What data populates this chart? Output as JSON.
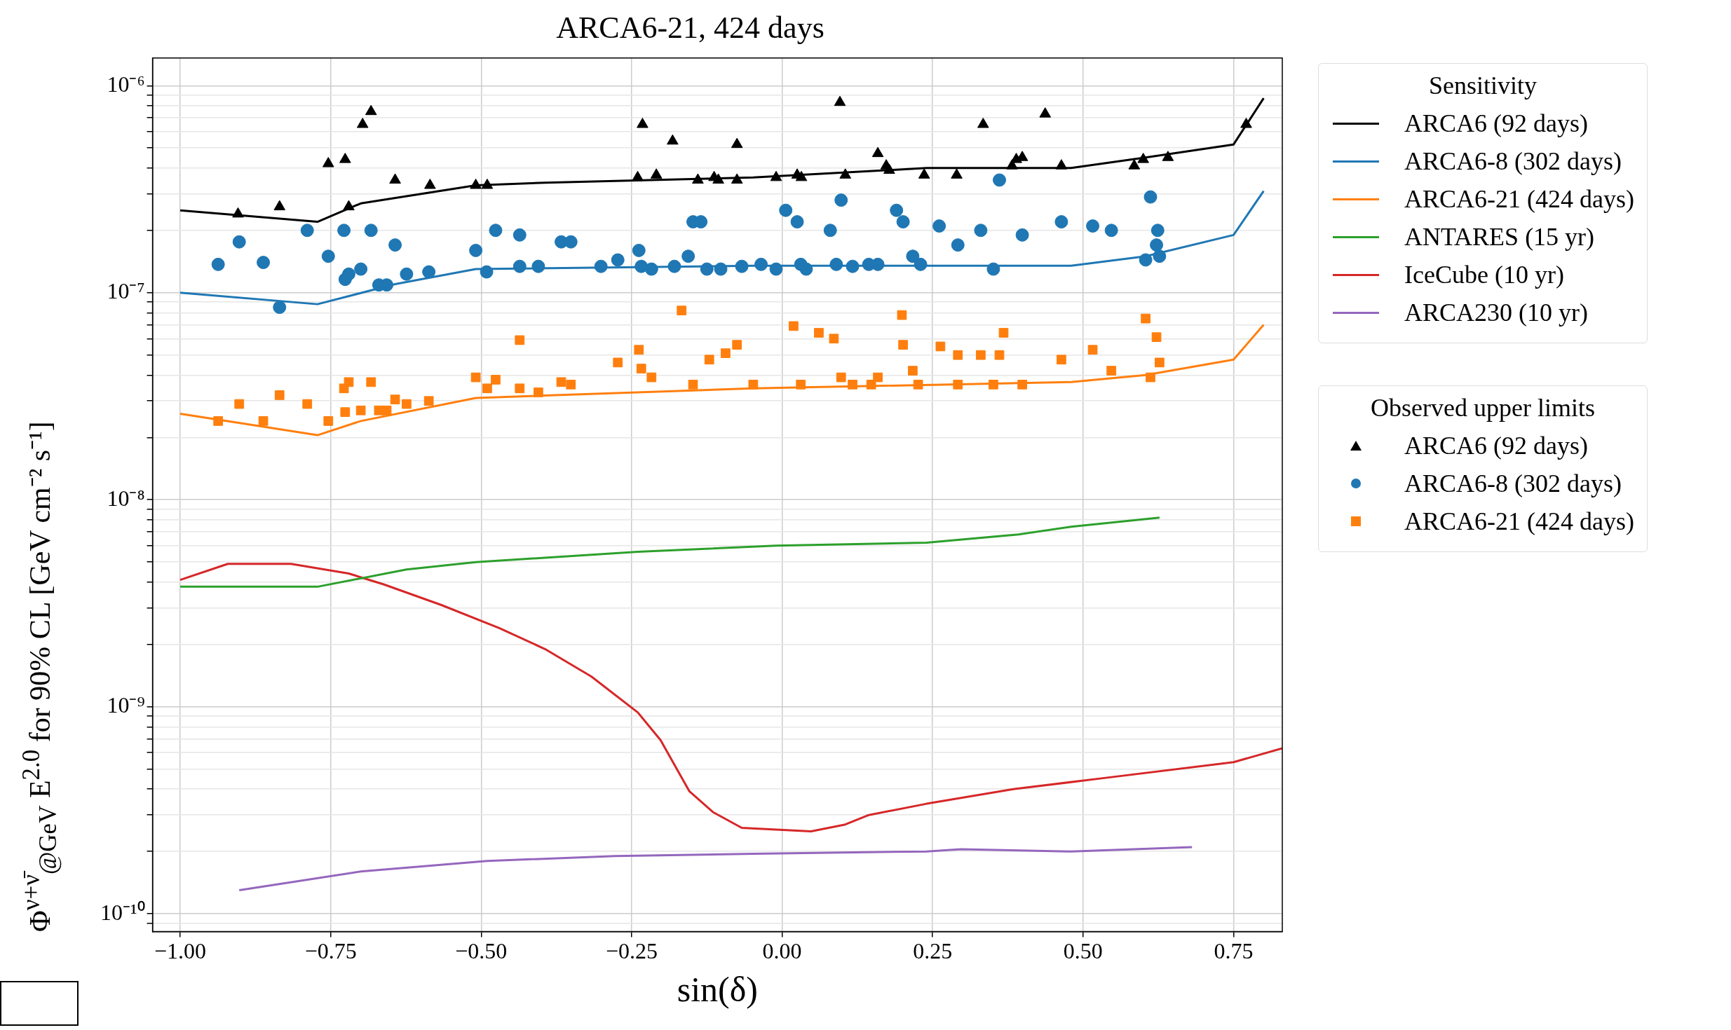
{
  "chart_data": {
    "type": "line",
    "title": "ARCA6-21, 424 days",
    "xlabel": "sin(δ)",
    "ylabel": "Φ$^{ν+ν̄}$$_{@GeV}$ E$^{2.0}$ for 90% CL [GeV cm⁻² s⁻¹]",
    "legend_title": "Sensitivity",
    "annotations": [
      "Observed upper limits"
    ],
    "legend": "right",
    "grid": true,
    "log": "y",
    "xlim": [
      -1.046,
      0.831
    ],
    "ylim": [
      8.2e-11,
      1.36e-06
    ],
    "xticks": [
      {
        "value": -1,
        "label": "−1.00"
      },
      {
        "value": -0.75,
        "label": "−0.75"
      },
      {
        "value": -0.5,
        "label": "−0.50"
      },
      {
        "value": -0.25,
        "label": "−0.25"
      },
      {
        "value": 0,
        "label": "0.00"
      },
      {
        "value": 0.25,
        "label": "0.25"
      },
      {
        "value": 0.5,
        "label": "0.50"
      },
      {
        "value": 0.75,
        "label": "0.75"
      }
    ],
    "yticks": [
      {
        "value": 9e-11,
        "label": null
      },
      {
        "value": 1e-10,
        "label": "10⁻¹⁰"
      },
      {
        "value": 2e-10,
        "label": null
      },
      {
        "value": 3e-10,
        "label": null
      },
      {
        "value": 4e-10,
        "label": null
      },
      {
        "value": 5e-10,
        "label": null
      },
      {
        "value": 6e-10,
        "label": null
      },
      {
        "value": 7e-10,
        "label": null
      },
      {
        "value": 8e-10,
        "label": null
      },
      {
        "value": 9e-10,
        "label": null
      },
      {
        "value": 1e-09,
        "label": "10⁻⁹"
      },
      {
        "value": 2e-09,
        "label": null
      },
      {
        "value": 3e-09,
        "label": null
      },
      {
        "value": 4e-09,
        "label": null
      },
      {
        "value": 5e-09,
        "label": null
      },
      {
        "value": 6e-09,
        "label": null
      },
      {
        "value": 7e-09,
        "label": null
      },
      {
        "value": 8e-09,
        "label": null
      },
      {
        "value": 9e-09,
        "label": null
      },
      {
        "value": 1e-08,
        "label": "10⁻⁸"
      },
      {
        "value": 2e-08,
        "label": null
      },
      {
        "value": 3e-08,
        "label": null
      },
      {
        "value": 4e-08,
        "label": null
      },
      {
        "value": 5e-08,
        "label": null
      },
      {
        "value": 6e-08,
        "label": null
      },
      {
        "value": 7e-08,
        "label": null
      },
      {
        "value": 8e-08,
        "label": null
      },
      {
        "value": 9e-08,
        "label": null
      },
      {
        "value": 1e-07,
        "label": "10⁻⁷"
      },
      {
        "value": 2e-07,
        "label": null
      },
      {
        "value": 3e-07,
        "label": null
      },
      {
        "value": 4e-07,
        "label": null
      },
      {
        "value": 5e-07,
        "label": null
      },
      {
        "value": 6e-07,
        "label": null
      },
      {
        "value": 7e-07,
        "label": null
      },
      {
        "value": 8e-07,
        "label": null
      },
      {
        "value": 9e-07,
        "label": null
      },
      {
        "value": 1e-06,
        "label": "10⁻⁶"
      }
    ],
    "series": [
      {
        "name": "ARCA6 (92 days)",
        "type": "line",
        "color": "#000000",
        "x": [
          -1.0,
          -0.772,
          -0.7,
          -0.509,
          -0.394,
          -0.048,
          0.24,
          0.48,
          0.604,
          0.75,
          0.8
        ],
        "values": [
          2.5e-07,
          2.2e-07,
          2.7e-07,
          3.3e-07,
          3.4e-07,
          3.6e-07,
          4e-07,
          4e-07,
          4.5e-07,
          5.2e-07,
          8.7e-07
        ]
      },
      {
        "name": "ARCA6-8 (302 days)",
        "type": "line",
        "color": "#1f77b4",
        "x": [
          -1.0,
          -0.772,
          -0.643,
          -0.509,
          -0.048,
          0.48,
          0.604,
          0.75,
          0.8
        ],
        "values": [
          1e-07,
          8.8e-08,
          1.1e-07,
          1.3e-07,
          1.35e-07,
          1.35e-07,
          1.5e-07,
          1.9e-07,
          3.1e-07
        ]
      },
      {
        "name": "ARCA6-21 (424 days)",
        "type": "line",
        "color": "#ff7f0e",
        "x": [
          -1.0,
          -0.772,
          -0.7,
          -0.509,
          -0.048,
          0.48,
          0.604,
          0.75,
          0.8
        ],
        "values": [
          2.6e-08,
          2.05e-08,
          2.4e-08,
          3.1e-08,
          3.45e-08,
          3.7e-08,
          4e-08,
          4.75e-08,
          7e-08
        ]
      },
      {
        "name": "ANTARES (15 yr)",
        "type": "line",
        "color": "#2ca02c",
        "x": [
          -1.0,
          -0.772,
          -0.624,
          -0.509,
          -0.24,
          -0.01,
          0.24,
          0.393,
          0.48,
          0.627
        ],
        "values": [
          3.8e-09,
          3.8e-09,
          4.6e-09,
          5e-09,
          5.6e-09,
          6e-09,
          6.2e-09,
          6.8e-09,
          7.4e-09,
          8.2e-09
        ]
      },
      {
        "name": "IceCube (10 yr)",
        "type": "line",
        "color": "#d62728",
        "x": [
          -1.0,
          -0.921,
          -0.816,
          -0.72,
          -0.662,
          -0.566,
          -0.47,
          -0.394,
          -0.317,
          -0.24,
          -0.202,
          -0.154,
          -0.115,
          -0.067,
          0.048,
          0.105,
          0.144,
          0.24,
          0.384,
          0.528,
          0.75,
          0.831
        ],
        "values": [
          4.1e-09,
          4.9e-09,
          4.9e-09,
          4.4e-09,
          3.9e-09,
          3.1e-09,
          2.4e-09,
          1.9e-09,
          1.4e-09,
          9.4e-10,
          6.9e-10,
          3.9e-10,
          3.1e-10,
          2.6e-10,
          2.5e-10,
          2.7e-10,
          3e-10,
          3.4e-10,
          4e-10,
          4.5e-10,
          5.4e-10,
          6.3e-10
        ]
      },
      {
        "name": "ARCA230 (10 yr)",
        "type": "line",
        "color": "#9467bd",
        "x": [
          -0.902,
          -0.7,
          -0.49,
          -0.278,
          -0.048,
          0.24,
          0.297,
          0.48,
          0.681
        ],
        "values": [
          1.3e-10,
          1.6e-10,
          1.8e-10,
          1.9e-10,
          1.95e-10,
          2e-10,
          2.05e-10,
          2e-10,
          2.1e-10
        ]
      },
      {
        "name": "ARCA6 (92 days)",
        "type": "scatter",
        "marker": "triangle",
        "color": "#000000",
        "x": [
          -0.904,
          -0.835,
          -0.754,
          -0.726,
          -0.72,
          -0.697,
          -0.683,
          -0.643,
          -0.585,
          -0.509,
          -0.49,
          -0.232,
          -0.24,
          -0.209,
          -0.182,
          -0.14,
          -0.113,
          -0.106,
          -0.075,
          -0.075,
          -0.01,
          0.025,
          0.032,
          0.096,
          0.105,
          0.159,
          0.173,
          0.178,
          0.236,
          0.29,
          0.334,
          0.382,
          0.389,
          0.399,
          0.437,
          0.464,
          0.585,
          0.6,
          0.641,
          0.771
        ],
        "values": [
          2.4e-07,
          2.6e-07,
          4.2e-07,
          4.4e-07,
          2.6e-07,
          6.5e-07,
          7.5e-07,
          3.5e-07,
          3.3e-07,
          3.3e-07,
          3.3e-07,
          6.5e-07,
          3.6e-07,
          3.7e-07,
          5.4e-07,
          3.5e-07,
          3.6e-07,
          3.5e-07,
          5.2e-07,
          3.5e-07,
          3.6e-07,
          3.7e-07,
          3.6e-07,
          8.3e-07,
          3.7e-07,
          4.7e-07,
          4.1e-07,
          3.9e-07,
          3.7e-07,
          3.7e-07,
          6.5e-07,
          4.1e-07,
          4.4e-07,
          4.5e-07,
          7.3e-07,
          4.1e-07,
          4.1e-07,
          4.4e-07,
          4.5e-07,
          6.5e-07
        ]
      },
      {
        "name": "ARCA6-8 (302 days)",
        "type": "scatter",
        "marker": "circle",
        "color": "#1f77b4",
        "x": [
          -0.937,
          -0.902,
          -0.862,
          -0.835,
          -0.789,
          -0.754,
          -0.728,
          -0.726,
          -0.72,
          -0.7,
          -0.683,
          -0.67,
          -0.657,
          -0.643,
          -0.624,
          -0.587,
          -0.509,
          -0.491,
          -0.476,
          -0.436,
          -0.436,
          -0.405,
          -0.367,
          -0.351,
          -0.301,
          -0.273,
          -0.238,
          -0.234,
          -0.217,
          -0.179,
          -0.156,
          -0.148,
          -0.135,
          -0.125,
          -0.102,
          -0.067,
          -0.035,
          -0.01,
          0.006,
          0.025,
          0.031,
          0.04,
          0.08,
          0.098,
          0.09,
          0.117,
          0.144,
          0.159,
          0.19,
          0.201,
          0.217,
          0.23,
          0.261,
          0.292,
          0.33,
          0.351,
          0.361,
          0.399,
          0.464,
          0.516,
          0.547,
          0.604,
          0.612,
          0.622,
          0.624,
          0.627
        ],
        "values": [
          1.37e-07,
          1.76e-07,
          1.4e-07,
          8.5e-08,
          2e-07,
          1.5e-07,
          2e-07,
          1.16e-07,
          1.23e-07,
          1.3e-07,
          2e-07,
          1.09e-07,
          1.09e-07,
          1.7e-07,
          1.23e-07,
          1.26e-07,
          1.6e-07,
          1.26e-07,
          2e-07,
          1.9e-07,
          1.34e-07,
          1.34e-07,
          1.76e-07,
          1.76e-07,
          1.34e-07,
          1.44e-07,
          1.6e-07,
          1.34e-07,
          1.3e-07,
          1.34e-07,
          1.5e-07,
          2.2e-07,
          2.2e-07,
          1.3e-07,
          1.3e-07,
          1.34e-07,
          1.37e-07,
          1.3e-07,
          2.5e-07,
          2.2e-07,
          1.37e-07,
          1.3e-07,
          2e-07,
          2.8e-07,
          1.37e-07,
          1.34e-07,
          1.37e-07,
          1.37e-07,
          2.5e-07,
          2.2e-07,
          1.5e-07,
          1.37e-07,
          2.1e-07,
          1.7e-07,
          2e-07,
          1.3e-07,
          3.5e-07,
          1.9e-07,
          2.2e-07,
          2.1e-07,
          2e-07,
          1.44e-07,
          2.9e-07,
          1.7e-07,
          2e-07,
          1.5e-07
        ]
      },
      {
        "name": "ARCA6-21 (424 days)",
        "type": "scatter",
        "marker": "square",
        "color": "#ff7f0e",
        "x": [
          -0.937,
          -0.902,
          -0.862,
          -0.835,
          -0.789,
          -0.754,
          -0.728,
          -0.72,
          -0.726,
          -0.7,
          -0.683,
          -0.67,
          -0.657,
          -0.643,
          -0.624,
          -0.587,
          -0.509,
          -0.49,
          -0.476,
          -0.436,
          -0.436,
          -0.405,
          -0.367,
          -0.351,
          -0.273,
          -0.238,
          -0.234,
          -0.217,
          -0.167,
          -0.148,
          -0.121,
          -0.094,
          -0.075,
          -0.048,
          0.019,
          0.031,
          0.061,
          0.086,
          0.098,
          0.117,
          0.148,
          0.159,
          0.199,
          0.201,
          0.217,
          0.226,
          0.263,
          0.292,
          0.292,
          0.33,
          0.351,
          0.361,
          0.368,
          0.399,
          0.464,
          0.516,
          0.547,
          0.604,
          0.612,
          0.622,
          0.627
        ],
        "values": [
          2.4e-08,
          2.9e-08,
          2.4e-08,
          3.2e-08,
          2.9e-08,
          2.4e-08,
          3.45e-08,
          3.7e-08,
          2.65e-08,
          2.7e-08,
          3.7e-08,
          2.7e-08,
          2.7e-08,
          3.05e-08,
          2.9e-08,
          3e-08,
          3.9e-08,
          3.45e-08,
          3.8e-08,
          5.9e-08,
          3.45e-08,
          3.3e-08,
          3.7e-08,
          3.6e-08,
          4.6e-08,
          5.3e-08,
          4.3e-08,
          3.9e-08,
          8.2e-08,
          3.6e-08,
          4.75e-08,
          5.1e-08,
          5.6e-08,
          3.6e-08,
          6.9e-08,
          3.6e-08,
          6.4e-08,
          6e-08,
          3.9e-08,
          3.6e-08,
          3.6e-08,
          3.9e-08,
          7.8e-08,
          5.6e-08,
          4.2e-08,
          3.6e-08,
          5.5e-08,
          5e-08,
          3.6e-08,
          5e-08,
          3.6e-08,
          5e-08,
          6.4e-08,
          3.6e-08,
          4.75e-08,
          5.3e-08,
          4.2e-08,
          7.5e-08,
          3.9e-08,
          6.1e-08,
          4.6e-08
        ]
      }
    ]
  }
}
